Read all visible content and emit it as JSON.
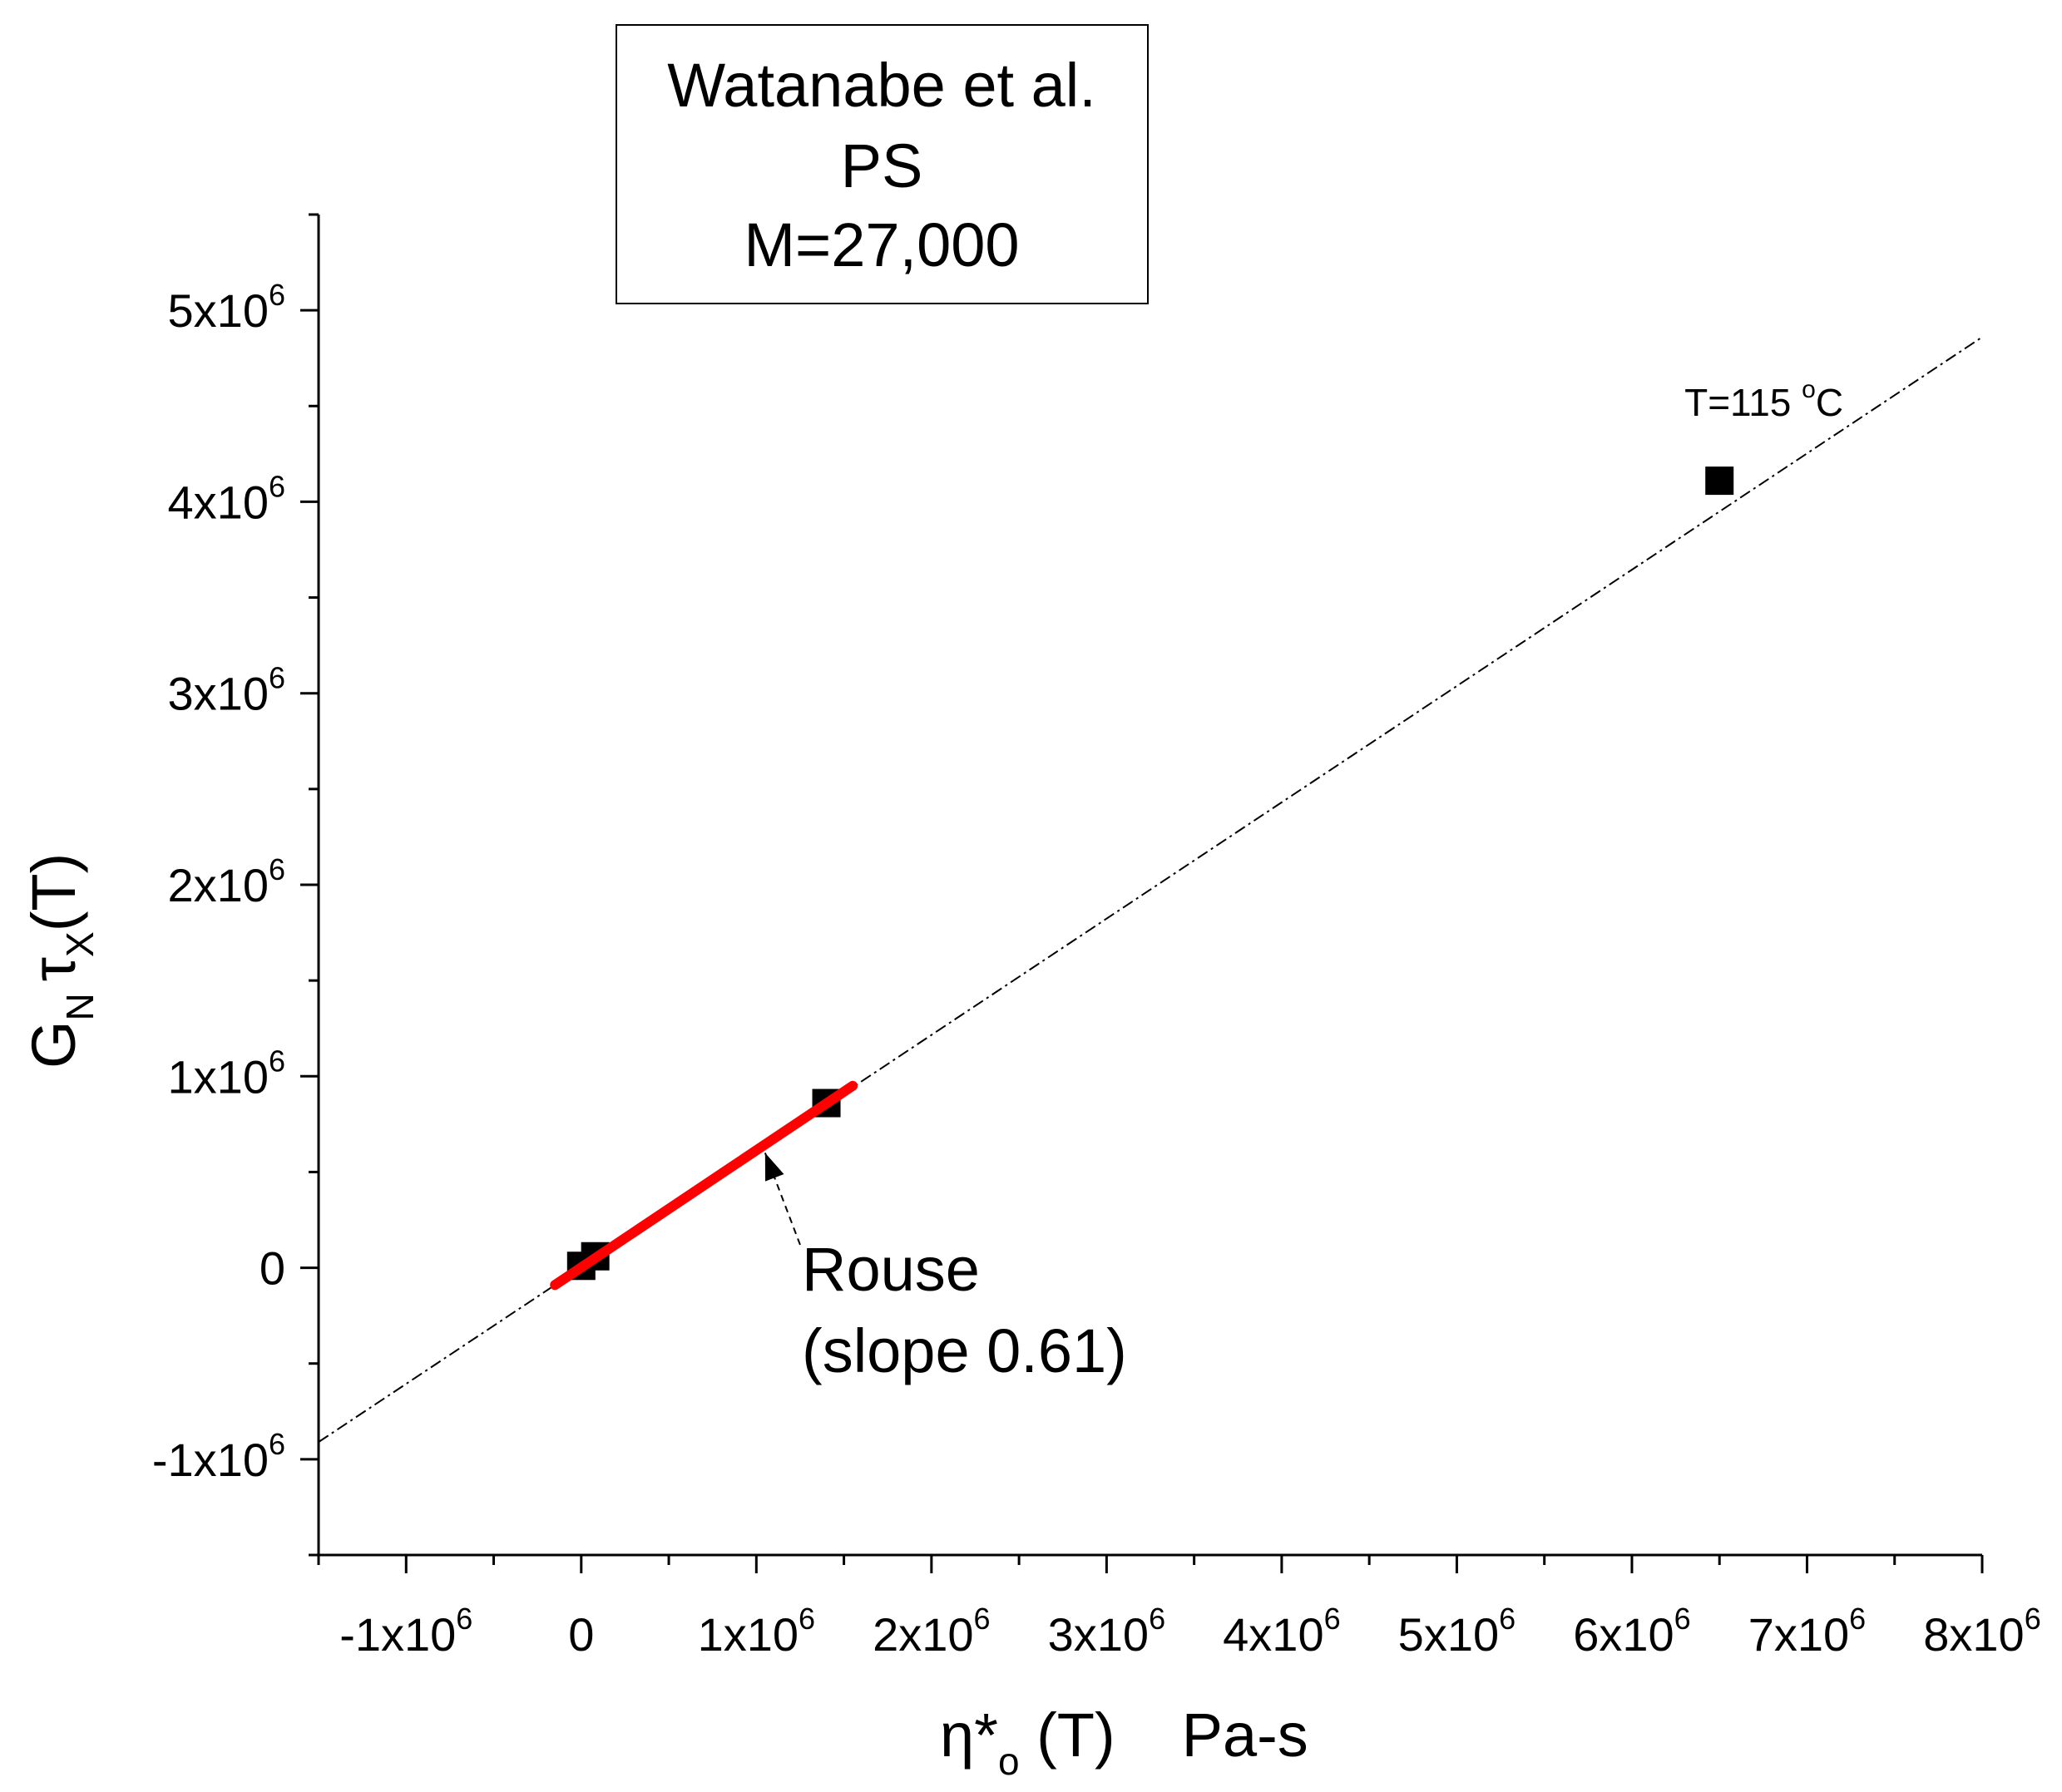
{
  "chart_data": {
    "type": "scatter",
    "legend_box": {
      "lines": [
        "Watanabe et al.",
        "PS",
        "M=27,000"
      ],
      "placement": "top-center"
    },
    "xlabel": {
      "symbol": "η*",
      "subscript": "o",
      "suffix": " (T)",
      "units": "Pa-s"
    },
    "ylabel": {
      "symbol": "G",
      "subscript": "N",
      "tau": "τ",
      "tau_subscript": "X",
      "suffix": "(T)"
    },
    "xlim": [
      -1500000,
      8000000
    ],
    "ylim": [
      -1500000,
      5500000
    ],
    "x_ticks": [
      {
        "value": -1000000,
        "base": "-1x10",
        "exp": "6"
      },
      {
        "value": 0,
        "base": "0",
        "exp": ""
      },
      {
        "value": 1000000,
        "base": "1x10",
        "exp": "6"
      },
      {
        "value": 2000000,
        "base": "2x10",
        "exp": "6"
      },
      {
        "value": 3000000,
        "base": "3x10",
        "exp": "6"
      },
      {
        "value": 4000000,
        "base": "4x10",
        "exp": "6"
      },
      {
        "value": 5000000,
        "base": "5x10",
        "exp": "6"
      },
      {
        "value": 6000000,
        "base": "6x10",
        "exp": "6"
      },
      {
        "value": 7000000,
        "base": "7x10",
        "exp": "6"
      },
      {
        "value": 8000000,
        "base": "8x10",
        "exp": "6"
      }
    ],
    "y_ticks": [
      {
        "value": -1000000,
        "base": "-1x10",
        "exp": "6"
      },
      {
        "value": 0,
        "base": "0",
        "exp": ""
      },
      {
        "value": 1000000,
        "base": "1x10",
        "exp": "6"
      },
      {
        "value": 2000000,
        "base": "2x10",
        "exp": "6"
      },
      {
        "value": 3000000,
        "base": "3x10",
        "exp": "6"
      },
      {
        "value": 4000000,
        "base": "4x10",
        "exp": "6"
      },
      {
        "value": 5000000,
        "base": "5x10",
        "exp": "6"
      }
    ],
    "minor_ticks": true,
    "grid": false,
    "points": [
      {
        "x": 0,
        "y": 10000
      },
      {
        "x": 80000,
        "y": 60000
      },
      {
        "x": 1400000,
        "y": 860000
      },
      {
        "x": 6500000,
        "y": 4110000
      }
    ],
    "fit_line": {
      "style": "dash-dot",
      "color": "#000000",
      "x": [
        -1500000,
        8000000
      ],
      "y": [
        -910000,
        4860000
      ]
    },
    "rouse_segment": {
      "color": "#ff0000",
      "x": [
        -150000,
        1550000
      ],
      "y": [
        -90000,
        950000
      ]
    },
    "annotations": [
      {
        "text": "T=115 ",
        "degree": "o",
        "unit": "C",
        "x": 6300000,
        "y": 4450000
      },
      {
        "lines": [
          "Rouse",
          "(slope 0.61)"
        ],
        "x": 1260000,
        "y": -120000,
        "arrow_from": [
          1250000,
          120000
        ],
        "arrow_to": [
          1050000,
          600000
        ]
      }
    ]
  }
}
